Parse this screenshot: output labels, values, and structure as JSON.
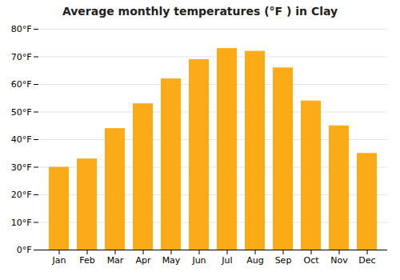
{
  "chart_data": {
    "type": "bar",
    "title": "Average monthly temperatures (°F ) in Clay",
    "categories": [
      "Jan",
      "Feb",
      "Mar",
      "Apr",
      "May",
      "Jun",
      "Jul",
      "Aug",
      "Sep",
      "Oct",
      "Nov",
      "Dec"
    ],
    "values": [
      30,
      33,
      44,
      53,
      62,
      69,
      73,
      72,
      66,
      54,
      45,
      35
    ],
    "color": "#FBAB18",
    "ylim": [
      0,
      80
    ],
    "yticks": [
      {
        "value": 0,
        "label": "0°F"
      },
      {
        "value": 10,
        "label": "10°F"
      },
      {
        "value": 20,
        "label": "20°F"
      },
      {
        "value": 30,
        "label": "30°F"
      },
      {
        "value": 40,
        "label": "40°F"
      },
      {
        "value": 50,
        "label": "50°F"
      },
      {
        "value": 60,
        "label": "60°F"
      },
      {
        "value": 70,
        "label": "70°F"
      },
      {
        "value": 80,
        "label": "80°F"
      }
    ],
    "grid": true
  }
}
